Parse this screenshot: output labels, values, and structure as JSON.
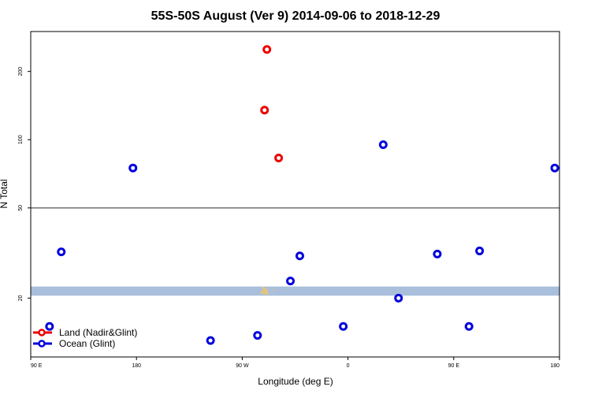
{
  "chart_data": {
    "type": "scatter",
    "title": "55S-50S August (Ver 9)   2014-09-06 to 2018-12-29",
    "xlabel": "Longitude (deg E)",
    "ylabel": "N Total",
    "x_axis": {
      "range": [
        90,
        540
      ],
      "ticks": [
        {
          "value": 90,
          "label": "90 E"
        },
        {
          "value": 180,
          "label": "180"
        },
        {
          "value": 270,
          "label": "90 W"
        },
        {
          "value": 360,
          "label": "0"
        },
        {
          "value": 450,
          "label": "90 E"
        },
        {
          "value": 540,
          "label": "180"
        }
      ]
    },
    "y_axis": {
      "scale": "log",
      "range": [
        11,
        300
      ],
      "ticks": [
        20,
        50,
        100,
        200
      ]
    },
    "reference_line": 50,
    "shaded_band": [
      20.5,
      22.5
    ],
    "series": [
      {
        "name": "Land (Nadir&Glint)",
        "color": "#ee0000",
        "points": [
          [
            291,
            250
          ],
          [
            289,
            135
          ],
          [
            301,
            83
          ]
        ]
      },
      {
        "name": "Ocean (Glint)",
        "color": "#0000dd",
        "points": [
          [
            106,
            15
          ],
          [
            116,
            32
          ],
          [
            177,
            75
          ],
          [
            243,
            13
          ],
          [
            283,
            13.7
          ],
          [
            311,
            23.8
          ],
          [
            319,
            30.7
          ],
          [
            356,
            15
          ],
          [
            390,
            95
          ],
          [
            403,
            20
          ],
          [
            436,
            31.3
          ],
          [
            463,
            15
          ],
          [
            472,
            32.3
          ],
          [
            536,
            75
          ]
        ]
      }
    ],
    "legend_position": "bottom-left"
  }
}
